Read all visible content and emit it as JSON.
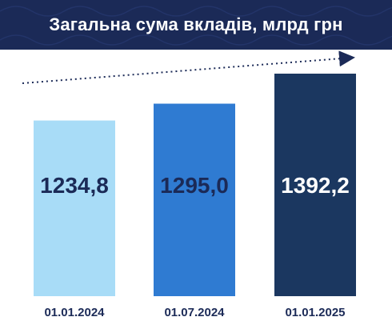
{
  "chart_data": {
    "type": "bar",
    "title": "Загальна сума вкладів, млрд грн",
    "categories": [
      "01.01.2024",
      "01.07.2024",
      "01.01.2025"
    ],
    "values": [
      1234.8,
      1295.0,
      1392.2
    ],
    "value_labels": [
      "1234,8",
      "1295,0",
      "1392,2"
    ],
    "bar_colors": [
      "#a8dcf7",
      "#2f7bd2",
      "#1b3760"
    ],
    "label_colors": [
      "#1b2a57",
      "#1b2a57",
      "#ffffff"
    ],
    "grid": false,
    "legend": "none",
    "trend_arrow": true
  },
  "colors": {
    "header": "#1b2a57",
    "arrow": "#1b2a57"
  }
}
